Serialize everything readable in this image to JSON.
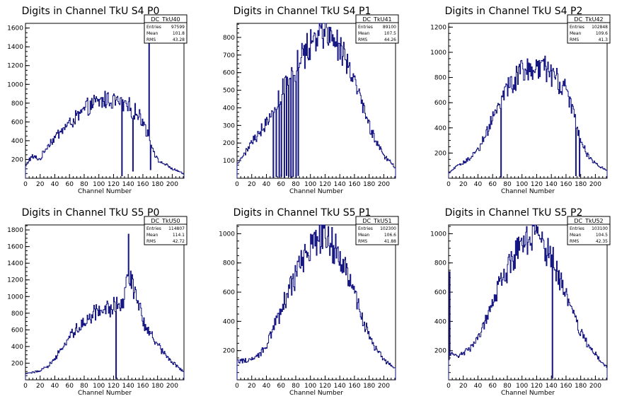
{
  "page": {
    "background": "#ffffff",
    "line_color": "#0f0f80",
    "axis_color": "#000000"
  },
  "chart_data": [
    {
      "type": "histogram",
      "title": "Digits in Channel TkU S4 P0",
      "xlabel": "Channel Number",
      "ylabel": "",
      "xlim": [
        0,
        216
      ],
      "ylim": [
        0,
        1650
      ],
      "xticks": [
        "0",
        "20",
        "40",
        "60",
        "80",
        "100",
        "120",
        "140",
        "160",
        "180",
        "200"
      ],
      "yticks": [
        "200",
        "400",
        "600",
        "800",
        "1000",
        "1200",
        "1400",
        "1600"
      ],
      "stats": {
        "name": "DC_TkU40",
        "entries_label": "Entries",
        "entries": "97599",
        "mean_label": "Mean",
        "mean": "101.8",
        "rms_label": "RMS",
        "rms": "43.28"
      },
      "profile": [
        [
          0,
          120
        ],
        [
          5,
          200
        ],
        [
          10,
          230
        ],
        [
          20,
          200
        ],
        [
          30,
          350
        ],
        [
          40,
          430
        ],
        [
          50,
          520
        ],
        [
          60,
          580
        ],
        [
          70,
          650
        ],
        [
          80,
          720
        ],
        [
          90,
          780
        ],
        [
          100,
          810
        ],
        [
          110,
          840
        ],
        [
          120,
          830
        ],
        [
          130,
          800
        ],
        [
          140,
          760
        ],
        [
          150,
          700
        ],
        [
          160,
          620
        ],
        [
          170,
          400
        ],
        [
          180,
          190
        ],
        [
          190,
          150
        ],
        [
          200,
          100
        ],
        [
          210,
          70
        ],
        [
          216,
          40
        ]
      ],
      "spikes": [
        [
          131,
          25
        ],
        [
          146,
          75
        ],
        [
          168,
          1550
        ],
        [
          170,
          90
        ]
      ]
    },
    {
      "type": "histogram",
      "title": "Digits in Channel TkU S4 P1",
      "xlabel": "Channel Number",
      "ylabel": "",
      "xlim": [
        0,
        216
      ],
      "ylim": [
        0,
        880
      ],
      "xticks": [
        "0",
        "20",
        "40",
        "60",
        "80",
        "100",
        "120",
        "140",
        "160",
        "180",
        "200"
      ],
      "yticks": [
        "100",
        "200",
        "300",
        "400",
        "500",
        "600",
        "700",
        "800"
      ],
      "stats": {
        "name": "DC_TkU41",
        "entries_label": "Entries",
        "entries": "89100",
        "mean_label": "Mean",
        "mean": "107.5",
        "rms_label": "RMS",
        "rms": "44.26"
      },
      "profile": [
        [
          0,
          80
        ],
        [
          10,
          140
        ],
        [
          20,
          200
        ],
        [
          30,
          260
        ],
        [
          40,
          320
        ],
        [
          50,
          400
        ],
        [
          60,
          480
        ],
        [
          70,
          560
        ],
        [
          80,
          630
        ],
        [
          90,
          700
        ],
        [
          100,
          770
        ],
        [
          110,
          820
        ],
        [
          120,
          835
        ],
        [
          130,
          800
        ],
        [
          140,
          740
        ],
        [
          150,
          650
        ],
        [
          160,
          540
        ],
        [
          170,
          420
        ],
        [
          180,
          300
        ],
        [
          190,
          200
        ],
        [
          200,
          130
        ],
        [
          210,
          90
        ],
        [
          216,
          60
        ]
      ],
      "spikes": [
        [
          49,
          5
        ],
        [
          53,
          10
        ],
        [
          57,
          5
        ],
        [
          60,
          10
        ],
        [
          64,
          5
        ],
        [
          67,
          15
        ],
        [
          70,
          10
        ],
        [
          73,
          5
        ],
        [
          76,
          10
        ],
        [
          80,
          5
        ],
        [
          83,
          15
        ]
      ]
    },
    {
      "type": "histogram",
      "title": "Digits in Channel TkU S4 P2",
      "xlabel": "Channel Number",
      "ylabel": "",
      "xlim": [
        0,
        216
      ],
      "ylim": [
        0,
        1230
      ],
      "xticks": [
        "0",
        "20",
        "40",
        "60",
        "80",
        "100",
        "120",
        "140",
        "160",
        "180",
        "200"
      ],
      "yticks": [
        "200",
        "400",
        "600",
        "800",
        "1000",
        "1200"
      ],
      "stats": {
        "name": "DC_TkU42",
        "entries_label": "Entries",
        "entries": "102848",
        "mean_label": "Mean",
        "mean": "109.6",
        "rms_label": "RMS",
        "rms": "41.3"
      },
      "profile": [
        [
          0,
          40
        ],
        [
          10,
          90
        ],
        [
          20,
          120
        ],
        [
          30,
          170
        ],
        [
          40,
          230
        ],
        [
          50,
          340
        ],
        [
          60,
          480
        ],
        [
          70,
          600
        ],
        [
          80,
          700
        ],
        [
          90,
          780
        ],
        [
          100,
          840
        ],
        [
          110,
          880
        ],
        [
          120,
          900
        ],
        [
          130,
          870
        ],
        [
          140,
          820
        ],
        [
          150,
          760
        ],
        [
          160,
          680
        ],
        [
          170,
          560
        ],
        [
          180,
          300
        ],
        [
          190,
          180
        ],
        [
          200,
          120
        ],
        [
          210,
          80
        ],
        [
          216,
          60
        ]
      ],
      "spikes": [
        [
          71,
          10
        ],
        [
          173,
          20
        ],
        [
          178,
          15
        ]
      ]
    },
    {
      "type": "histogram",
      "title": "Digits in Channel TkU S5 P0",
      "xlabel": "Channel Number",
      "ylabel": "",
      "xlim": [
        0,
        216
      ],
      "ylim": [
        0,
        1860
      ],
      "xticks": [
        "0",
        "20",
        "40",
        "60",
        "80",
        "100",
        "120",
        "140",
        "160",
        "180",
        "200"
      ],
      "yticks": [
        "200",
        "400",
        "600",
        "800",
        "1000",
        "1200",
        "1400",
        "1600",
        "1800"
      ],
      "stats": {
        "name": "DC_TkU50",
        "entries_label": "Entries",
        "entries": "114807",
        "mean_label": "Mean",
        "mean": "114.1",
        "rms_label": "RMS",
        "rms": "42.72"
      },
      "profile": [
        [
          0,
          70
        ],
        [
          10,
          90
        ],
        [
          20,
          110
        ],
        [
          30,
          160
        ],
        [
          40,
          250
        ],
        [
          50,
          380
        ],
        [
          60,
          500
        ],
        [
          70,
          610
        ],
        [
          80,
          700
        ],
        [
          90,
          780
        ],
        [
          100,
          830
        ],
        [
          110,
          860
        ],
        [
          120,
          880
        ],
        [
          130,
          900
        ],
        [
          135,
          1000
        ],
        [
          140,
          1300
        ],
        [
          145,
          1200
        ],
        [
          150,
          1000
        ],
        [
          155,
          900
        ],
        [
          160,
          700
        ],
        [
          170,
          550
        ],
        [
          180,
          420
        ],
        [
          190,
          320
        ],
        [
          200,
          220
        ],
        [
          210,
          130
        ],
        [
          216,
          100
        ]
      ],
      "spikes": [
        [
          123,
          15
        ],
        [
          140,
          1750
        ]
      ]
    },
    {
      "type": "histogram",
      "title": "Digits in Channel TkU S5 P1",
      "xlabel": "Channel Number",
      "ylabel": "",
      "xlim": [
        0,
        216
      ],
      "ylim": [
        0,
        1060
      ],
      "xticks": [
        "0",
        "20",
        "40",
        "60",
        "80",
        "100",
        "120",
        "140",
        "160",
        "180",
        "200"
      ],
      "yticks": [
        "200",
        "400",
        "600",
        "800",
        "1000"
      ],
      "stats": {
        "name": "DC_TkU51",
        "entries_label": "Entries",
        "entries": "102300",
        "mean_label": "Mean",
        "mean": "106.6",
        "rms_label": "RMS",
        "rms": "41.88"
      },
      "profile": [
        [
          0,
          130
        ],
        [
          10,
          130
        ],
        [
          20,
          140
        ],
        [
          30,
          170
        ],
        [
          40,
          240
        ],
        [
          50,
          360
        ],
        [
          60,
          480
        ],
        [
          70,
          600
        ],
        [
          80,
          720
        ],
        [
          90,
          820
        ],
        [
          100,
          900
        ],
        [
          110,
          960
        ],
        [
          115,
          990
        ],
        [
          120,
          980
        ],
        [
          130,
          920
        ],
        [
          140,
          840
        ],
        [
          150,
          730
        ],
        [
          160,
          590
        ],
        [
          170,
          430
        ],
        [
          180,
          300
        ],
        [
          190,
          200
        ],
        [
          200,
          140
        ],
        [
          210,
          100
        ],
        [
          216,
          80
        ]
      ],
      "spikes": []
    },
    {
      "type": "histogram",
      "title": "Digits in Channel TkU S5 P2",
      "xlabel": "Channel Number",
      "ylabel": "",
      "xlim": [
        0,
        216
      ],
      "ylim": [
        0,
        1060
      ],
      "xticks": [
        "0",
        "20",
        "40",
        "60",
        "80",
        "100",
        "120",
        "140",
        "160",
        "180",
        "200"
      ],
      "yticks": [
        "200",
        "400",
        "600",
        "800",
        "1000"
      ],
      "stats": {
        "name": "DC_TkU52",
        "entries_label": "Entries",
        "entries": "103100",
        "mean_label": "Mean",
        "mean": "104.5",
        "rms_label": "RMS",
        "rms": "42.35"
      },
      "profile": [
        [
          0,
          120
        ],
        [
          4,
          200
        ],
        [
          10,
          160
        ],
        [
          20,
          180
        ],
        [
          30,
          220
        ],
        [
          40,
          290
        ],
        [
          50,
          400
        ],
        [
          60,
          520
        ],
        [
          70,
          640
        ],
        [
          80,
          760
        ],
        [
          90,
          860
        ],
        [
          100,
          940
        ],
        [
          110,
          990
        ],
        [
          115,
          1000
        ],
        [
          120,
          980
        ],
        [
          130,
          920
        ],
        [
          140,
          840
        ],
        [
          150,
          720
        ],
        [
          160,
          580
        ],
        [
          170,
          440
        ],
        [
          180,
          320
        ],
        [
          190,
          230
        ],
        [
          200,
          170
        ],
        [
          210,
          120
        ],
        [
          216,
          80
        ]
      ],
      "spikes": [
        [
          1,
          740
        ],
        [
          141,
          10
        ]
      ]
    }
  ]
}
